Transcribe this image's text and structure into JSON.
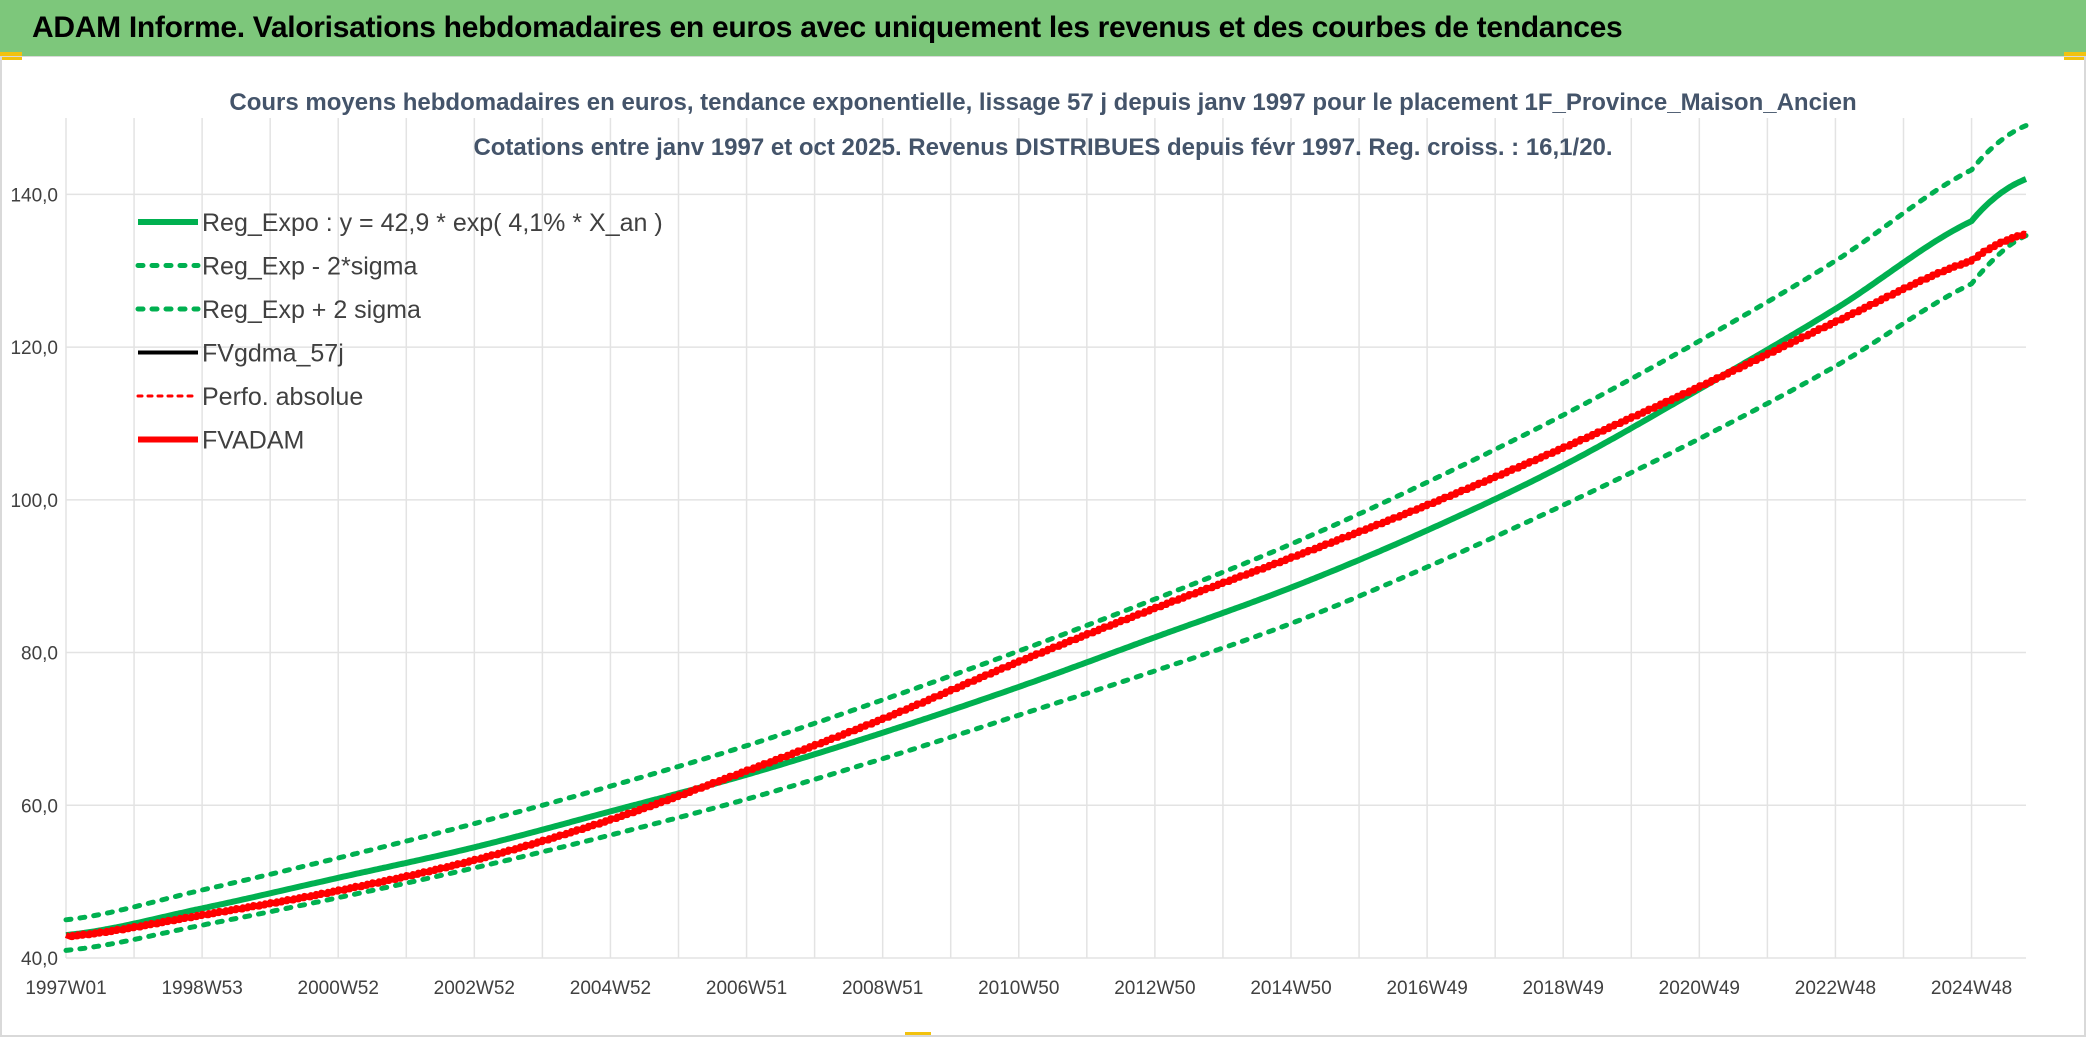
{
  "header": {
    "title": "ADAM Informe. Valorisations hebdomadaires en euros avec uniquement les revenus et des courbes de tendances"
  },
  "chart_data": {
    "type": "line",
    "title_lines": [
      "Cours moyens hebdomadaires en euros, tendance exponentielle, lissage 57 j depuis janv 1997 pour le placement 1F_Province_Maison_Ancien",
      "Cotations entre janv 1997 et oct 2025. Revenus DISTRIBUES depuis févr 1997. Reg. croiss. : 16,1/20."
    ],
    "x_range": [
      1997.0,
      2025.8
    ],
    "ylim": [
      40,
      150
    ],
    "y_ticks": [
      40,
      60,
      80,
      100,
      120,
      140
    ],
    "y_tick_labels": [
      "40,0",
      "60,0",
      "80,0",
      "100,0",
      "120,0",
      "140,0"
    ],
    "x_ticks": [
      {
        "label": "1997W01",
        "x": 1997.0
      },
      {
        "label": "1998W53",
        "x": 1999.0
      },
      {
        "label": "2000W52",
        "x": 2001.0
      },
      {
        "label": "2002W52",
        "x": 2003.0
      },
      {
        "label": "2004W52",
        "x": 2005.0
      },
      {
        "label": "2006W51",
        "x": 2007.0
      },
      {
        "label": "2008W51",
        "x": 2009.0
      },
      {
        "label": "2010W50",
        "x": 2011.0
      },
      {
        "label": "2012W50",
        "x": 2013.0
      },
      {
        "label": "2014W50",
        "x": 2015.0
      },
      {
        "label": "2016W49",
        "x": 2017.0
      },
      {
        "label": "2018W49",
        "x": 2019.0
      },
      {
        "label": "2020W49",
        "x": 2021.0
      },
      {
        "label": "2022W48",
        "x": 2023.0
      },
      {
        "label": "2024W48",
        "x": 2025.0
      }
    ],
    "grid": true,
    "legend_position": "top-left",
    "series": [
      {
        "name": "Reg_Expo : y = 42,9 * exp( 4,1% *  X_an )",
        "color": "#00b050",
        "style": "solid",
        "width": 6,
        "x": [
          1997,
          1999,
          2001,
          2003,
          2005,
          2007,
          2009,
          2011,
          2013,
          2015,
          2017,
          2019,
          2021,
          2023,
          2025,
          2025.8
        ],
        "y": [
          43.0,
          46.5,
          50.5,
          54.5,
          59.2,
          64.0,
          69.5,
          75.5,
          82.0,
          88.5,
          96.0,
          104.5,
          114.5,
          125.0,
          136.5,
          142.0
        ]
      },
      {
        "name": "Reg_Exp - 2*sigma",
        "color": "#00b050",
        "style": "dotted",
        "width": 5,
        "x": [
          1997,
          1999,
          2001,
          2003,
          2005,
          2007,
          2009,
          2011,
          2013,
          2015,
          2017,
          2019,
          2021,
          2023,
          2025,
          2025.8
        ],
        "y": [
          41.0,
          44.3,
          47.9,
          51.8,
          56.1,
          60.8,
          66.1,
          71.8,
          77.6,
          83.8,
          91.2,
          99.3,
          108.0,
          117.5,
          128.3,
          134.6
        ]
      },
      {
        "name": "Reg_Exp + 2 sigma",
        "color": "#00b050",
        "style": "dotted",
        "width": 5,
        "x": [
          1997,
          1999,
          2001,
          2003,
          2005,
          2007,
          2009,
          2011,
          2013,
          2015,
          2017,
          2019,
          2021,
          2023,
          2025,
          2025.8
        ],
        "y": [
          45.0,
          48.9,
          53.1,
          57.6,
          62.5,
          67.8,
          73.8,
          80.2,
          87.0,
          94.2,
          102.3,
          111.1,
          120.8,
          131.3,
          143.2,
          149.0
        ]
      },
      {
        "name": "FVgdma_57j",
        "color": "#000000",
        "style": "solid",
        "width": 4,
        "x": [],
        "y": []
      },
      {
        "name": "Perfo. absolue",
        "color": "#ff0000",
        "style": "dotted",
        "width": 3,
        "x": [],
        "y": []
      },
      {
        "name": "FVADAM",
        "color": "#ff0000",
        "style": "solid",
        "width": 6,
        "x": [
          1997,
          1999,
          2001,
          2003,
          2005,
          2007,
          2009,
          2011,
          2013,
          2015,
          2017,
          2019,
          2021,
          2023,
          2025,
          2025.8
        ],
        "y": [
          43.0,
          45.8,
          49.0,
          53.0,
          58.3,
          64.7,
          71.5,
          79.0,
          86.0,
          92.6,
          99.5,
          107.0,
          115.0,
          123.5,
          131.5,
          135.0
        ]
      }
    ]
  },
  "colors": {
    "header_bg": "#7dc77b",
    "corner_accent": "#f2c20f",
    "title_text": "#44546a",
    "grid": "#e3e3e3"
  }
}
